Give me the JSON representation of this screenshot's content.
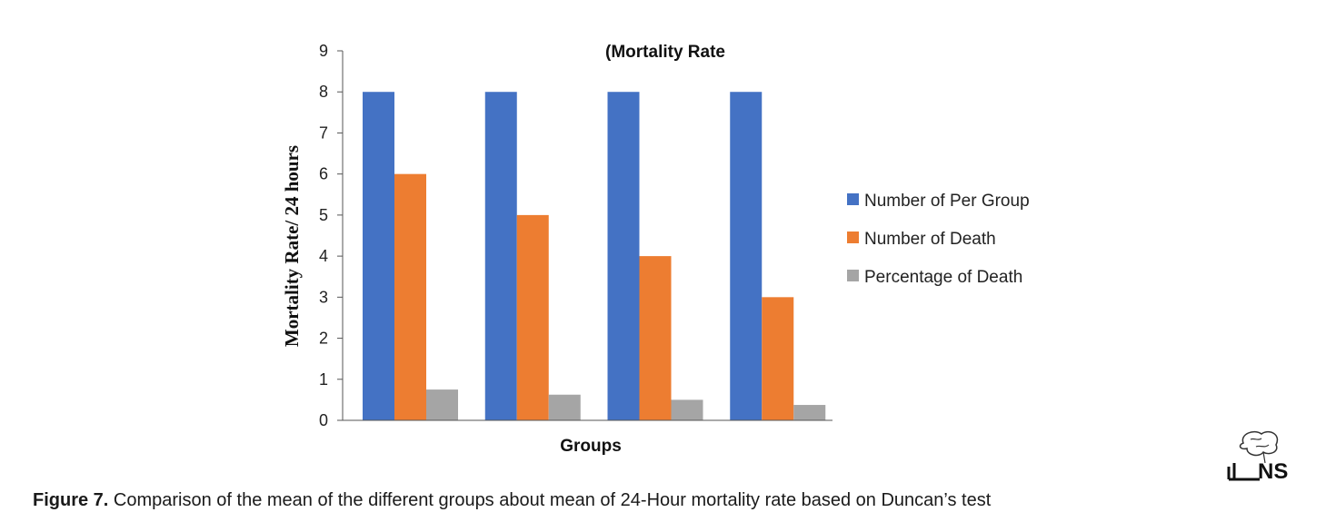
{
  "chart_data": {
    "type": "bar",
    "title": "(Mortality Rate",
    "xlabel": "Groups",
    "ylabel": "Mortality Rate/ 24 hours",
    "ylim": [
      0,
      9
    ],
    "yticks": [
      0,
      1,
      2,
      3,
      4,
      5,
      6,
      7,
      8,
      9
    ],
    "grid": false,
    "legend_position": "right",
    "categories": [
      "",
      "",
      "",
      ""
    ],
    "series": [
      {
        "name": "Number of Per Group",
        "color": "#4472C4",
        "values": [
          8,
          8,
          8,
          8
        ]
      },
      {
        "name": "Number of Death",
        "color": "#ED7D31",
        "values": [
          6,
          5,
          4,
          3
        ]
      },
      {
        "name": "Percentage of Death",
        "color": "#A5A5A5",
        "values": [
          0.75,
          0.625,
          0.5,
          0.375
        ]
      }
    ]
  },
  "caption": {
    "lead": "Figure 7.",
    "text": " Comparison of the mean of the different groups about mean of 24-Hour mortality rate based on Duncan’s test"
  },
  "logo": {
    "text": "NS",
    "icon": "brain-logo-icon"
  }
}
